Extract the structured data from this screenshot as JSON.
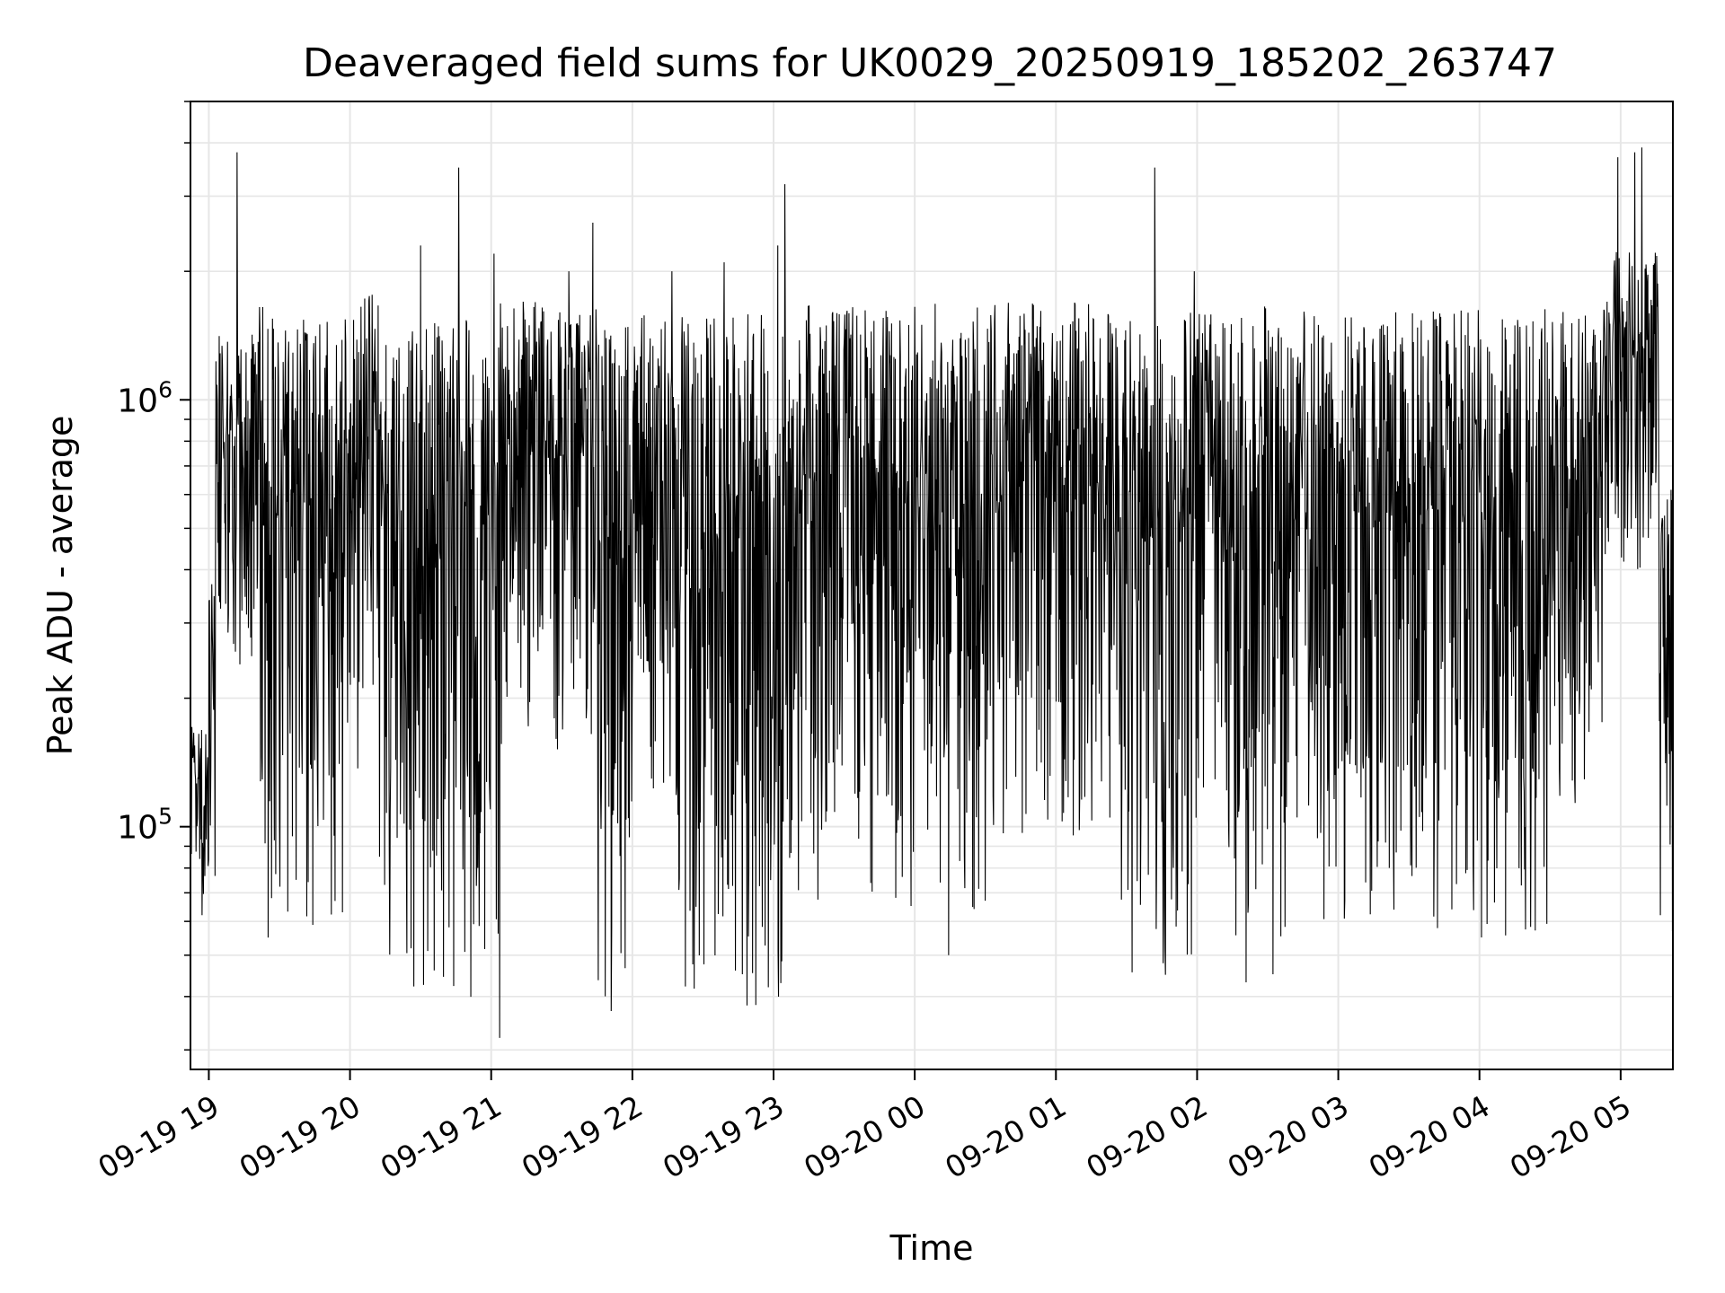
{
  "chart_data": {
    "type": "line",
    "title": "Deaveraged field sums for UK0029_20250919_185202_263747",
    "xlabel": "Time",
    "ylabel": "Peak ADU - average",
    "y_scale": "log",
    "ylim": [
      27000,
      5000000
    ],
    "xlim_hours": [
      -0.13,
      10.37
    ],
    "grid": true,
    "line_color": "#000000",
    "grid_color": "#e6e6e6",
    "x_ticks": [
      {
        "hour": 0,
        "label": "09-19 19"
      },
      {
        "hour": 1,
        "label": "09-19 20"
      },
      {
        "hour": 2,
        "label": "09-19 21"
      },
      {
        "hour": 3,
        "label": "09-19 22"
      },
      {
        "hour": 4,
        "label": "09-19 23"
      },
      {
        "hour": 5,
        "label": "09-20 00"
      },
      {
        "hour": 6,
        "label": "09-20 01"
      },
      {
        "hour": 7,
        "label": "09-20 02"
      },
      {
        "hour": 8,
        "label": "09-20 03"
      },
      {
        "hour": 9,
        "label": "09-20 04"
      },
      {
        "hour": 10,
        "label": "09-20 05"
      }
    ],
    "y_ticks": [
      {
        "value": 100000,
        "base": "10",
        "exp": "5"
      },
      {
        "value": 1000000,
        "base": "10",
        "exp": "6"
      }
    ],
    "series": [
      {
        "name": "Peak ADU - average",
        "envelope": {
          "note": "approximate per-segment range of the dense series (hours since 19:00)",
          "segments": [
            {
              "t0": -0.13,
              "t1": 0.0,
              "low": 62000,
              "high": 175000
            },
            {
              "t0": 0.0,
              "t1": 0.05,
              "low": 70000,
              "high": 480000
            },
            {
              "t0": 0.05,
              "t1": 0.35,
              "low": 240000,
              "high": 1450000
            },
            {
              "t0": 0.35,
              "t1": 0.95,
              "low": 55000,
              "high": 1650000
            },
            {
              "t0": 0.95,
              "t1": 1.2,
              "low": 95000,
              "high": 1800000
            },
            {
              "t0": 1.2,
              "t1": 2.05,
              "low": 38000,
              "high": 1550000
            },
            {
              "t0": 2.05,
              "t1": 2.75,
              "low": 150000,
              "high": 1700000
            },
            {
              "t0": 2.75,
              "t1": 3.0,
              "low": 37000,
              "high": 1500000
            },
            {
              "t0": 3.0,
              "t1": 3.3,
              "low": 120000,
              "high": 1600000
            },
            {
              "t0": 3.3,
              "t1": 4.2,
              "low": 38000,
              "high": 1600000
            },
            {
              "t0": 4.2,
              "t1": 5.5,
              "low": 60000,
              "high": 1700000
            },
            {
              "t0": 5.5,
              "t1": 6.4,
              "low": 95000,
              "high": 1700000
            },
            {
              "t0": 6.4,
              "t1": 7.0,
              "low": 43000,
              "high": 1650000
            },
            {
              "t0": 7.0,
              "t1": 7.2,
              "low": 120000,
              "high": 1600000
            },
            {
              "t0": 7.2,
              "t1": 7.8,
              "low": 43000,
              "high": 1700000
            },
            {
              "t0": 7.8,
              "t1": 9.5,
              "low": 55000,
              "high": 1650000
            },
            {
              "t0": 9.5,
              "t1": 9.9,
              "low": 110000,
              "high": 1650000
            },
            {
              "t0": 9.9,
              "t1": 10.27,
              "low": 400000,
              "high": 2300000
            },
            {
              "t0": 10.27,
              "t1": 10.37,
              "low": 53000,
              "high": 700000
            }
          ]
        },
        "spikes": [
          {
            "t": 0.2,
            "value": 3800000
          },
          {
            "t": 0.22,
            "value": 240000
          },
          {
            "t": 0.42,
            "value": 55000
          },
          {
            "t": 1.5,
            "value": 2300000
          },
          {
            "t": 1.77,
            "value": 3500000
          },
          {
            "t": 2.02,
            "value": 2200000
          },
          {
            "t": 2.06,
            "value": 32000
          },
          {
            "t": 2.55,
            "value": 2000000
          },
          {
            "t": 2.72,
            "value": 2600000
          },
          {
            "t": 2.85,
            "value": 37000
          },
          {
            "t": 3.28,
            "value": 2000000
          },
          {
            "t": 3.65,
            "value": 2100000
          },
          {
            "t": 4.03,
            "value": 2300000
          },
          {
            "t": 4.08,
            "value": 3200000
          },
          {
            "t": 5.24,
            "value": 50000
          },
          {
            "t": 6.7,
            "value": 3500000
          },
          {
            "t": 6.98,
            "value": 2000000
          },
          {
            "t": 9.98,
            "value": 3700000
          },
          {
            "t": 10.1,
            "value": 3800000
          },
          {
            "t": 10.15,
            "value": 3900000
          }
        ]
      }
    ]
  }
}
